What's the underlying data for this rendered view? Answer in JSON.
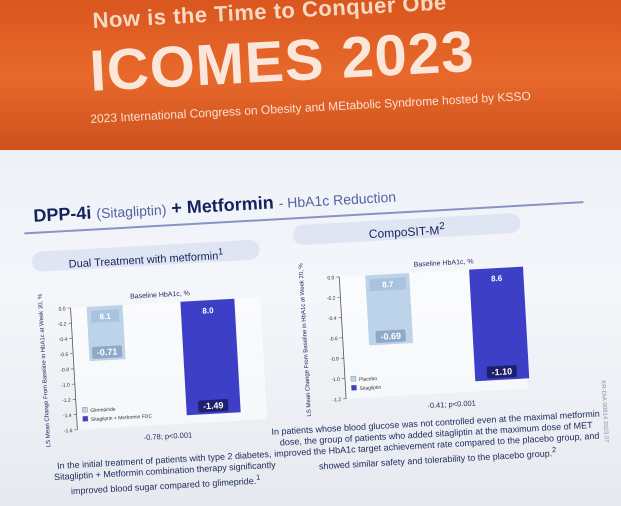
{
  "banner": {
    "tagline": "Now is the Time to Conquer Obe",
    "brand": "ICOMES 2023",
    "subtitle": "2023 International Congress on Obesity and MEtabolic Syndrome hosted by KSSO"
  },
  "slide": {
    "title_main": "DPP-4i",
    "title_paren": "(Sitagliptin)",
    "title_combo": "+ Metformin",
    "title_suffix": "- HbA1c Reduction",
    "side_code": "KR-DIA-00814 2023.07",
    "panels": [
      {
        "header": "Dual Treatment with metformin",
        "header_sup": "1",
        "caption": "In the initial treatment of patients with type 2 diabetes, Sitagliptin + Metformin combination therapy significantly improved blood sugar compared to glimepride.",
        "caption_sup": "1"
      },
      {
        "header": "CompoSIT-M",
        "header_sup": "2",
        "caption": "In patients whose blood glucose was not controlled even at the maximal metformin dose, the group of patients who added sitagliptin at the maximum dose of MET improved the HbA1c target achievement rate compared to the placebo group, and showed similar safety and tolerability to the placebo group.",
        "caption_sup": "2"
      }
    ]
  },
  "chart_data": [
    {
      "type": "bar",
      "ylabel": "LS Mean Change From Baseline in HbA1c at Week 30, %",
      "baseline_label": "Baseline HbA1c, %",
      "ylim": [
        -1.6,
        0.0
      ],
      "yticks": [
        "0.0",
        "-0.2",
        "-0.4",
        "-0.6",
        "-0.8",
        "-1.0",
        "-1.2",
        "-1.4",
        "-1.6"
      ],
      "series": [
        {
          "name": "Glimepiride",
          "baseline": "8.1",
          "value": -0.71,
          "value_label": "-0.71",
          "color": "#bcd3ea"
        },
        {
          "name": "Sitagliptin + Metformin FDC",
          "baseline": "8.0",
          "value": -1.49,
          "value_label": "-1.49",
          "color": "#3d3fc7"
        }
      ],
      "annotation": "-0.78; p<0.001"
    },
    {
      "type": "bar",
      "ylabel": "LS Mean Change From Baseline in HbA1c at Week 20, %",
      "baseline_label": "Baseline HbA1c, %",
      "ylim": [
        -1.2,
        0.0
      ],
      "yticks": [
        "0.0",
        "-0.2",
        "-0.4",
        "-0.6",
        "-0.8",
        "-1.0",
        "-1.2"
      ],
      "series": [
        {
          "name": "Placebo",
          "baseline": "8.7",
          "value": -0.69,
          "value_label": "-0.69",
          "color": "#bcd3ea"
        },
        {
          "name": "Sitagliptin",
          "baseline": "8.6",
          "value": -1.1,
          "value_label": "-1.10",
          "color": "#3d3fc7"
        }
      ],
      "annotation": "-0.41; p<0.001"
    }
  ]
}
